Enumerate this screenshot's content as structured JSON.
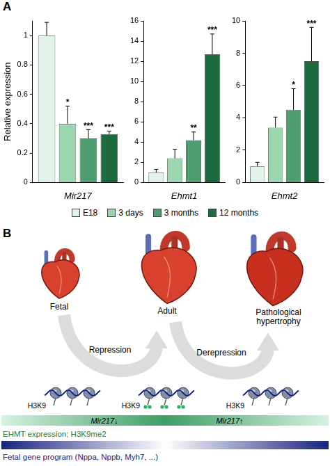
{
  "chart_data": [
    {
      "type": "bar",
      "categories": [
        "Mir217"
      ],
      "y_label": "Relative expression",
      "ylim": [
        0,
        1.1
      ],
      "yticks": [
        0,
        0.2,
        0.4,
        0.6,
        0.8,
        1
      ],
      "grid": false,
      "legend": "bottom",
      "series": [
        {
          "name": "E18",
          "color": "#e1f3e9",
          "values": [
            1.0
          ],
          "errors": [
            0.09
          ]
        },
        {
          "name": "3 days",
          "color": "#9cd6af",
          "values": [
            0.4
          ],
          "errors": [
            0.12
          ],
          "annotations": [
            "*"
          ]
        },
        {
          "name": "3 months",
          "color": "#4f9e70",
          "values": [
            0.3
          ],
          "errors": [
            0.06
          ],
          "annotations": [
            "***"
          ]
        },
        {
          "name": "12 months",
          "color": "#1f6b40",
          "values": [
            0.33
          ],
          "errors": [
            0.02
          ],
          "annotations": [
            "***"
          ]
        }
      ]
    },
    {
      "type": "bar",
      "categories": [
        "Ehmt1"
      ],
      "ylim": [
        0,
        16
      ],
      "yticks": [
        0,
        2,
        4,
        6,
        8,
        10,
        12,
        14,
        16
      ],
      "grid": false,
      "series": [
        {
          "name": "E18",
          "color": "#e1f3e9",
          "values": [
            1.0
          ],
          "errors": [
            0.3
          ]
        },
        {
          "name": "3 days",
          "color": "#9cd6af",
          "values": [
            2.4
          ],
          "errors": [
            0.9
          ]
        },
        {
          "name": "3 months",
          "color": "#4f9e70",
          "values": [
            4.2
          ],
          "errors": [
            0.8
          ],
          "annotations": [
            "**"
          ]
        },
        {
          "name": "12 months",
          "color": "#1f6b40",
          "values": [
            12.7
          ],
          "errors": [
            2.0
          ],
          "annotations": [
            "***"
          ]
        }
      ]
    },
    {
      "type": "bar",
      "categories": [
        "Ehmt2"
      ],
      "ylim": [
        0,
        10
      ],
      "yticks": [
        0,
        2,
        4,
        6,
        8,
        10
      ],
      "grid": false,
      "series": [
        {
          "name": "E18",
          "color": "#e1f3e9",
          "values": [
            1.0
          ],
          "errors": [
            0.25
          ]
        },
        {
          "name": "3 days",
          "color": "#9cd6af",
          "values": [
            3.4
          ],
          "errors": [
            0.65
          ]
        },
        {
          "name": "3 months",
          "color": "#4f9e70",
          "values": [
            4.5
          ],
          "errors": [
            1.3
          ],
          "annotations": [
            "*"
          ]
        },
        {
          "name": "12 months",
          "color": "#1f6b40",
          "values": [
            7.5
          ],
          "errors": [
            2.1
          ],
          "annotations": [
            "***"
          ]
        }
      ]
    }
  ],
  "panel_a": {
    "letter": "A"
  },
  "panel_b": {
    "letter": "B",
    "stages": [
      {
        "label": "Fetal",
        "histone_label": "H3K9",
        "methylated": false
      },
      {
        "label": "Adult",
        "histone_label": "H3K9",
        "methylated": true
      },
      {
        "label": "Pathological hypertrophy",
        "histone_label": "H3K9",
        "methylated": false
      }
    ],
    "transitions": [
      "Repression",
      "Derepression"
    ],
    "gradient_bars": [
      {
        "labels": [
          "Mir217↓",
          "Mir217↑"
        ],
        "caption": "EHMT expression; H3K9me2"
      },
      {
        "caption": "Fetal gene program (Nppa, Nppb, Myh7, ...)"
      }
    ]
  }
}
